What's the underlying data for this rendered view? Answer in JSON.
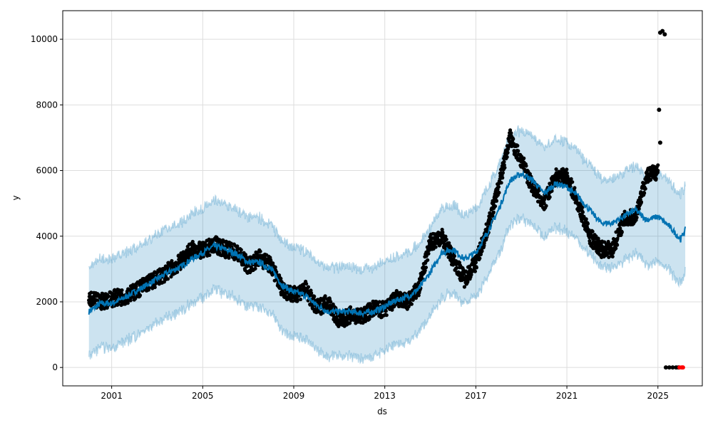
{
  "chart_data": {
    "type": "line",
    "title": "",
    "xlabel": "ds",
    "ylabel": "y",
    "xlim": [
      1998.85,
      2026.95
    ],
    "ylim": [
      -560,
      10870
    ],
    "xticks": [
      "2001",
      "2005",
      "2009",
      "2013",
      "2017",
      "2021",
      "2025"
    ],
    "xtick_values": [
      2001,
      2005,
      2009,
      2013,
      2017,
      2021,
      2025
    ],
    "yticks": [
      "0",
      "2000",
      "4000",
      "6000",
      "8000",
      "10000"
    ],
    "ytick_values": [
      0,
      2000,
      4000,
      6000,
      8000,
      10000
    ],
    "grid": true,
    "colors": {
      "forecast": "#0072B2",
      "band": "#0072B2",
      "observed": "#000000",
      "highlight": "#ff0000",
      "grid": "#dddddd"
    },
    "forecast": [
      [
        2000.0,
        1700
      ],
      [
        2000.5,
        1950
      ],
      [
        2001,
        1950
      ],
      [
        2001.5,
        2100
      ],
      [
        2002,
        2300
      ],
      [
        2002.5,
        2500
      ],
      [
        2003,
        2700
      ],
      [
        2003.5,
        2900
      ],
      [
        2004,
        3050
      ],
      [
        2004.5,
        3300
      ],
      [
        2005,
        3500
      ],
      [
        2005.5,
        3700
      ],
      [
        2006,
        3600
      ],
      [
        2006.5,
        3450
      ],
      [
        2007,
        3200
      ],
      [
        2007.5,
        3200
      ],
      [
        2008,
        3000
      ],
      [
        2008.5,
        2500
      ],
      [
        2009,
        2300
      ],
      [
        2009.5,
        2200
      ],
      [
        2010,
        1900
      ],
      [
        2010.5,
        1700
      ],
      [
        2011,
        1700
      ],
      [
        2011.5,
        1700
      ],
      [
        2012,
        1650
      ],
      [
        2012.5,
        1700
      ],
      [
        2013,
        1850
      ],
      [
        2013.5,
        2050
      ],
      [
        2014,
        2150
      ],
      [
        2014.5,
        2400
      ],
      [
        2015,
        2900
      ],
      [
        2015.5,
        3500
      ],
      [
        2016,
        3600
      ],
      [
        2016.5,
        3300
      ],
      [
        2017,
        3500
      ],
      [
        2017.5,
        4100
      ],
      [
        2018,
        4800
      ],
      [
        2018.5,
        5700
      ],
      [
        2019,
        5900
      ],
      [
        2019.5,
        5700
      ],
      [
        2020,
        5300
      ],
      [
        2020.5,
        5600
      ],
      [
        2021,
        5500
      ],
      [
        2021.5,
        5200
      ],
      [
        2022,
        4800
      ],
      [
        2022.5,
        4400
      ],
      [
        2023,
        4400
      ],
      [
        2023.5,
        4600
      ],
      [
        2024,
        4800
      ],
      [
        2024.5,
        4500
      ],
      [
        2025,
        4600
      ],
      [
        2025.5,
        4300
      ],
      [
        2026,
        3900
      ],
      [
        2026.2,
        4200
      ]
    ],
    "band_halfwidth": 1350,
    "observed": [
      [
        2000,
        2050
      ],
      [
        2000.5,
        2000
      ],
      [
        2001,
        2100
      ],
      [
        2001.5,
        2150
      ],
      [
        2002,
        2300
      ],
      [
        2002.5,
        2550
      ],
      [
        2003,
        2700
      ],
      [
        2003.5,
        2950
      ],
      [
        2004,
        3200
      ],
      [
        2004.5,
        3600
      ],
      [
        2005,
        3550
      ],
      [
        2005.5,
        3750
      ],
      [
        2006,
        3600
      ],
      [
        2006.5,
        3500
      ],
      [
        2007,
        3100
      ],
      [
        2007.5,
        3350
      ],
      [
        2008,
        3100
      ],
      [
        2008.5,
        2400
      ],
      [
        2009,
        2200
      ],
      [
        2009.5,
        2400
      ],
      [
        2010,
        1800
      ],
      [
        2010.5,
        2000
      ],
      [
        2011,
        1400
      ],
      [
        2011.5,
        1600
      ],
      [
        2012,
        1550
      ],
      [
        2012.5,
        1800
      ],
      [
        2013,
        1750
      ],
      [
        2013.5,
        2100
      ],
      [
        2014,
        2000
      ],
      [
        2014.5,
        2400
      ],
      [
        2015,
        3800
      ],
      [
        2015.5,
        4000
      ],
      [
        2016,
        3300
      ],
      [
        2016.5,
        2700
      ],
      [
        2017,
        3200
      ],
      [
        2017.5,
        4200
      ],
      [
        2018,
        5500
      ],
      [
        2018.5,
        7000
      ],
      [
        2019,
        6300
      ],
      [
        2019.5,
        5500
      ],
      [
        2020,
        5000
      ],
      [
        2020.5,
        5800
      ],
      [
        2021,
        5800
      ],
      [
        2021.5,
        5000
      ],
      [
        2022,
        4000
      ],
      [
        2022.5,
        3600
      ],
      [
        2023,
        3600
      ],
      [
        2023.5,
        4500
      ],
      [
        2024,
        4600
      ],
      [
        2024.5,
        5800
      ],
      [
        2025,
        6000
      ]
    ],
    "observed_outliers": [
      [
        2025.05,
        7850
      ],
      [
        2025.1,
        10200
      ],
      [
        2025.2,
        10250
      ],
      [
        2025.3,
        10150
      ],
      [
        2025.1,
        6850
      ]
    ],
    "observed_zero": [
      [
        2025.35,
        0
      ],
      [
        2025.5,
        0
      ],
      [
        2025.65,
        0
      ],
      [
        2025.8,
        0
      ],
      [
        2025.9,
        0
      ]
    ],
    "highlighted": [
      [
        2025.95,
        0
      ],
      [
        2026.05,
        0
      ],
      [
        2026.1,
        0
      ]
    ]
  }
}
